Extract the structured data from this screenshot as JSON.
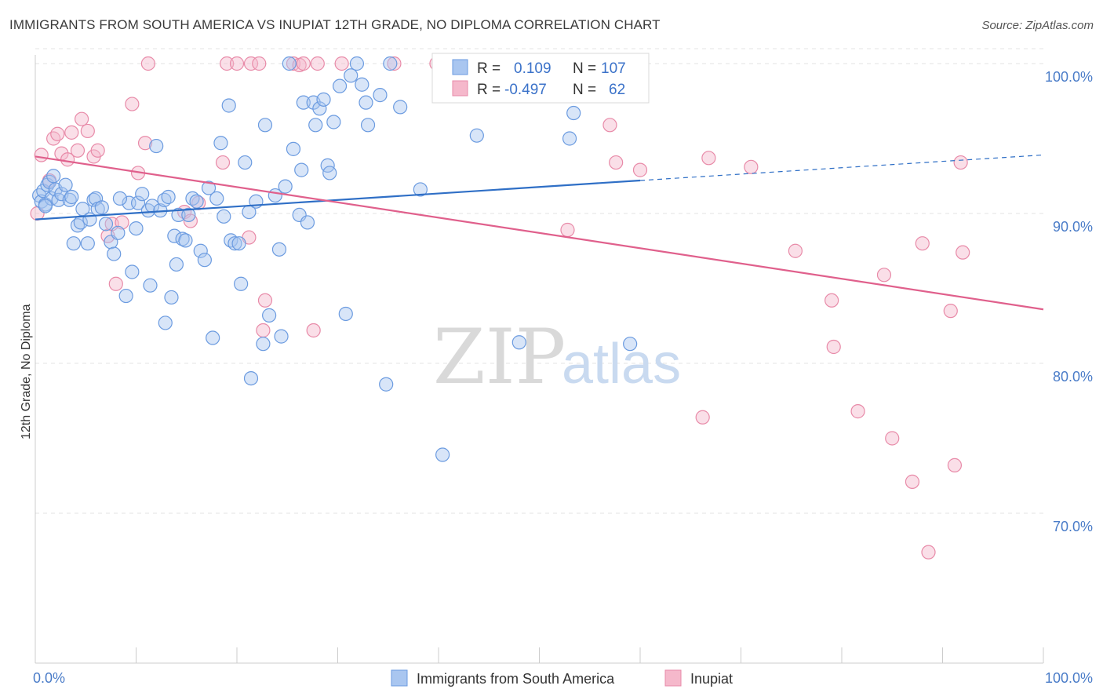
{
  "title": "IMMIGRANTS FROM SOUTH AMERICA VS INUPIAT 12TH GRADE, NO DIPLOMA CORRELATION CHART",
  "source": "Source: ZipAtlas.com",
  "watermark": {
    "part1": "ZIP",
    "part2": "atlas"
  },
  "colors": {
    "blue_fill": "#a9c6f0",
    "blue_stroke": "#6b9be0",
    "blue_line": "#2f6fc6",
    "pink_fill": "#f5b8cb",
    "pink_stroke": "#e88aa8",
    "pink_line": "#e0608c",
    "grid": "#e3e3e3",
    "tick_text": "#4a7cc8"
  },
  "legend_box": {
    "row1": {
      "r_label": "R =",
      "r_value": "0.109",
      "n_label": "N =",
      "n_value": "107"
    },
    "row2": {
      "r_label": "R =",
      "r_value": "-0.497",
      "n_label": "N =",
      "n_value": "62"
    }
  },
  "chart_data": {
    "type": "scatter",
    "title": "IMMIGRANTS FROM SOUTH AMERICA VS INUPIAT 12TH GRADE, NO DIPLOMA CORRELATION CHART",
    "xlabel": "",
    "ylabel": "12th Grade, No Diploma",
    "xlim": [
      0,
      100
    ],
    "ylim": [
      60,
      102
    ],
    "x_tick_labels": [
      "0.0%",
      "100.0%"
    ],
    "y_ticks": [
      70,
      80,
      90,
      100
    ],
    "y_tick_labels": [
      "70.0%",
      "80.0%",
      "90.0%",
      "100.0%"
    ],
    "grid": true,
    "legend_position": "bottom-center",
    "series": [
      {
        "name": "Immigrants from South America",
        "color": "#a9c6f0",
        "trend": {
          "x": [
            0,
            60
          ],
          "y": [
            89.6,
            92.2
          ],
          "dashed_to": [
            100,
            93.9
          ]
        },
        "points": [
          [
            0.4,
            91.2
          ],
          [
            0.6,
            90.8
          ],
          [
            0.8,
            91.5
          ],
          [
            1.0,
            90.6
          ],
          [
            1.2,
            91.9
          ],
          [
            1.4,
            92.1
          ],
          [
            1.6,
            91.0
          ],
          [
            1.8,
            92.5
          ],
          [
            2.0,
            91.6
          ],
          [
            2.3,
            90.9
          ],
          [
            2.6,
            91.3
          ],
          [
            3.0,
            91.9
          ],
          [
            3.4,
            90.9
          ],
          [
            3.6,
            91.1
          ],
          [
            4.2,
            89.2
          ],
          [
            4.5,
            89.4
          ],
          [
            4.7,
            90.3
          ],
          [
            5.2,
            88.0
          ],
          [
            5.4,
            89.6
          ],
          [
            5.8,
            90.9
          ],
          [
            6.0,
            91.0
          ],
          [
            6.2,
            90.3
          ],
          [
            6.6,
            90.4
          ],
          [
            7.0,
            89.3
          ],
          [
            7.5,
            88.1
          ],
          [
            7.8,
            87.3
          ],
          [
            8.2,
            88.7
          ],
          [
            9.0,
            84.5
          ],
          [
            9.3,
            90.7
          ],
          [
            9.6,
            86.1
          ],
          [
            10.2,
            90.7
          ],
          [
            10.6,
            91.3
          ],
          [
            11.2,
            90.2
          ],
          [
            11.4,
            85.2
          ],
          [
            11.6,
            90.5
          ],
          [
            12.0,
            94.5
          ],
          [
            12.4,
            90.2
          ],
          [
            12.8,
            90.9
          ],
          [
            12.9,
            82.7
          ],
          [
            13.2,
            91.1
          ],
          [
            13.5,
            84.4
          ],
          [
            13.8,
            88.5
          ],
          [
            14.2,
            89.9
          ],
          [
            14.6,
            88.3
          ],
          [
            14.9,
            88.2
          ],
          [
            15.2,
            89.9
          ],
          [
            15.6,
            91.0
          ],
          [
            16.0,
            90.8
          ],
          [
            16.4,
            87.5
          ],
          [
            16.8,
            86.9
          ],
          [
            17.2,
            91.7
          ],
          [
            17.6,
            81.7
          ],
          [
            18.0,
            91.0
          ],
          [
            18.4,
            94.7
          ],
          [
            18.7,
            89.8
          ],
          [
            19.2,
            97.2
          ],
          [
            19.4,
            88.2
          ],
          [
            19.8,
            88.0
          ],
          [
            20.2,
            88.0
          ],
          [
            20.4,
            85.3
          ],
          [
            20.8,
            93.4
          ],
          [
            21.2,
            90.1
          ],
          [
            21.4,
            79.0
          ],
          [
            21.9,
            90.8
          ],
          [
            22.6,
            81.3
          ],
          [
            22.8,
            95.9
          ],
          [
            23.2,
            83.2
          ],
          [
            23.8,
            91.2
          ],
          [
            24.2,
            87.6
          ],
          [
            24.4,
            81.8
          ],
          [
            24.8,
            91.8
          ],
          [
            25.2,
            100.0
          ],
          [
            25.6,
            94.3
          ],
          [
            26.2,
            89.9
          ],
          [
            26.4,
            92.9
          ],
          [
            26.6,
            97.4
          ],
          [
            27.0,
            89.4
          ],
          [
            27.6,
            97.4
          ],
          [
            27.8,
            95.9
          ],
          [
            28.2,
            97.0
          ],
          [
            28.6,
            97.6
          ],
          [
            29.0,
            93.2
          ],
          [
            29.2,
            92.7
          ],
          [
            29.6,
            96.1
          ],
          [
            30.2,
            98.5
          ],
          [
            30.8,
            83.3
          ],
          [
            31.3,
            99.2
          ],
          [
            31.9,
            100.0
          ],
          [
            32.4,
            98.6
          ],
          [
            32.8,
            97.4
          ],
          [
            33.0,
            95.9
          ],
          [
            34.2,
            97.9
          ],
          [
            34.8,
            78.6
          ],
          [
            35.2,
            100.0
          ],
          [
            36.2,
            97.1
          ],
          [
            38.2,
            91.6
          ],
          [
            40.4,
            73.9
          ],
          [
            43.8,
            95.2
          ],
          [
            48.0,
            81.4
          ],
          [
            53.0,
            95.0
          ],
          [
            53.4,
            96.7
          ],
          [
            59.0,
            81.3
          ],
          [
            1.0,
            90.5
          ],
          [
            3.8,
            88.0
          ],
          [
            8.4,
            91.0
          ],
          [
            14.0,
            86.6
          ],
          [
            10.0,
            89.0
          ]
        ]
      },
      {
        "name": "Inupiat",
        "color": "#f5b8cb",
        "trend": {
          "x": [
            0,
            100
          ],
          "y": [
            93.8,
            83.6
          ]
        },
        "points": [
          [
            0.2,
            90.0
          ],
          [
            0.6,
            93.9
          ],
          [
            1.4,
            92.2
          ],
          [
            1.8,
            95.0
          ],
          [
            2.2,
            95.3
          ],
          [
            2.6,
            94.0
          ],
          [
            3.2,
            93.6
          ],
          [
            3.6,
            95.4
          ],
          [
            4.2,
            94.2
          ],
          [
            4.6,
            96.3
          ],
          [
            5.2,
            95.5
          ],
          [
            5.8,
            93.8
          ],
          [
            6.2,
            94.2
          ],
          [
            7.2,
            88.5
          ],
          [
            7.6,
            89.3
          ],
          [
            8.0,
            85.3
          ],
          [
            8.6,
            89.4
          ],
          [
            9.6,
            97.3
          ],
          [
            10.2,
            92.7
          ],
          [
            10.9,
            94.7
          ],
          [
            11.2,
            100.0
          ],
          [
            14.8,
            90.1
          ],
          [
            15.4,
            89.5
          ],
          [
            16.2,
            90.7
          ],
          [
            18.6,
            93.4
          ],
          [
            19.0,
            100.0
          ],
          [
            20.0,
            100.0
          ],
          [
            21.2,
            88.4
          ],
          [
            21.4,
            100.0
          ],
          [
            22.2,
            100.0
          ],
          [
            22.6,
            82.2
          ],
          [
            22.8,
            84.2
          ],
          [
            25.6,
            100.0
          ],
          [
            26.2,
            99.9
          ],
          [
            26.6,
            100.0
          ],
          [
            27.6,
            82.2
          ],
          [
            28.0,
            100.0
          ],
          [
            30.4,
            100.0
          ],
          [
            35.6,
            100.0
          ],
          [
            39.8,
            100.0
          ],
          [
            46.0,
            100.0
          ],
          [
            50.5,
            100.0
          ],
          [
            52.8,
            88.9
          ],
          [
            57.0,
            95.9
          ],
          [
            57.6,
            93.4
          ],
          [
            60.0,
            92.9
          ],
          [
            66.2,
            76.4
          ],
          [
            66.8,
            93.7
          ],
          [
            71.0,
            93.1
          ],
          [
            75.4,
            87.5
          ],
          [
            79.0,
            84.2
          ],
          [
            79.2,
            81.1
          ],
          [
            81.6,
            76.8
          ],
          [
            84.2,
            85.9
          ],
          [
            85.0,
            75.0
          ],
          [
            87.0,
            72.1
          ],
          [
            88.0,
            88.0
          ],
          [
            88.6,
            67.4
          ],
          [
            90.8,
            83.5
          ],
          [
            91.2,
            73.2
          ],
          [
            91.8,
            93.4
          ],
          [
            92.0,
            87.4
          ]
        ]
      }
    ]
  },
  "legend_bottom": {
    "series1": "Immigrants from South America",
    "series2": "Inupiat"
  }
}
